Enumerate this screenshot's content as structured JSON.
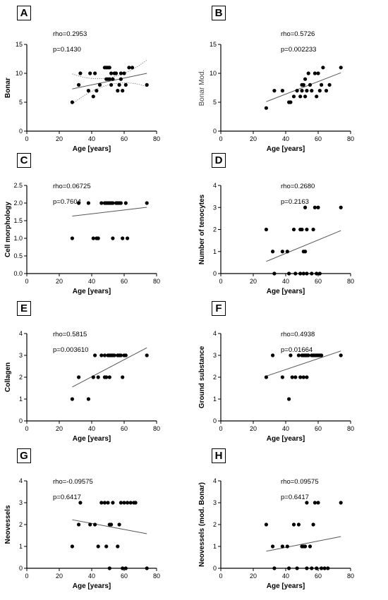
{
  "chart_data": [
    {
      "panel": "A",
      "type": "scatter",
      "xlabel": "Age [years]",
      "ylabel": "Bonar",
      "xlim": [
        0,
        80
      ],
      "ylim": [
        0,
        15
      ],
      "xticks": [
        "0",
        "20",
        "40",
        "60",
        "80"
      ],
      "yticks": [
        "0",
        "5",
        "10",
        "15"
      ],
      "annotations": [
        "rho=0.2953",
        "p=0.1430"
      ],
      "x": [
        28,
        32,
        33,
        38,
        39,
        41,
        42,
        43,
        45,
        48,
        49,
        49,
        50,
        50,
        51,
        51,
        52,
        52,
        53,
        54,
        55,
        56,
        57,
        58,
        58,
        59,
        60,
        61,
        63,
        65,
        74
      ],
      "y": [
        5,
        8,
        10,
        7,
        10,
        6,
        10,
        7,
        8,
        11,
        9,
        11,
        9,
        11,
        9,
        11,
        8,
        10,
        9,
        10,
        10,
        7,
        8,
        9,
        10,
        7,
        10,
        8,
        11,
        11,
        8
      ],
      "fit_line": {
        "x": [
          28,
          74
        ],
        "y": [
          7.3,
          10.0
        ]
      },
      "confidence_band": true,
      "ylabel_bold": true
    },
    {
      "panel": "B",
      "type": "scatter",
      "xlabel": "Age [years]",
      "ylabel": "Bonar Mod.",
      "xlim": [
        0,
        80
      ],
      "ylim": [
        0,
        15
      ],
      "xticks": [
        "0",
        "20",
        "40",
        "60",
        "80"
      ],
      "yticks": [
        "0",
        "5",
        "10",
        "15"
      ],
      "annotations": [
        "rho=0.5726",
        "p=0.002233"
      ],
      "x": [
        28,
        33,
        38,
        42,
        43,
        45,
        47,
        49,
        50,
        50,
        51,
        52,
        52,
        53,
        54,
        55,
        56,
        58,
        59,
        60,
        61,
        62,
        63,
        65,
        67,
        74
      ],
      "y": [
        4,
        7,
        7,
        5,
        5,
        6,
        7,
        6,
        8,
        7,
        8,
        6,
        9,
        7,
        10,
        8,
        7,
        10,
        6,
        10,
        7,
        8,
        11,
        7,
        8,
        11
      ],
      "fit_line": {
        "x": [
          28,
          74
        ],
        "y": [
          5.1,
          10.1
        ]
      },
      "ylabel_bold": false
    },
    {
      "panel": "C",
      "type": "scatter",
      "xlabel": "Age [years]",
      "ylabel": "Cell morphology",
      "xlim": [
        0,
        80
      ],
      "ylim": [
        0.0,
        2.5
      ],
      "xticks": [
        "0",
        "20",
        "40",
        "60",
        "80"
      ],
      "yticks": [
        "0.0",
        "0.5",
        "1.0",
        "1.5",
        "2.0",
        "2.5"
      ],
      "annotations": [
        "rho=0.06725",
        "p=0.7604"
      ],
      "x": [
        28,
        32,
        38,
        41,
        43,
        44,
        46,
        48,
        49,
        50,
        51,
        52,
        53,
        53,
        55,
        56,
        57,
        58,
        59,
        61,
        62,
        74
      ],
      "y": [
        1,
        2,
        2,
        1,
        1,
        1,
        2,
        2,
        2,
        2,
        2,
        2,
        1,
        2,
        2,
        2,
        2,
        2,
        1,
        2,
        1,
        2
      ],
      "fit_line": {
        "x": [
          28,
          74
        ],
        "y": [
          1.63,
          1.88
        ]
      },
      "ylabel_bold": true
    },
    {
      "panel": "D",
      "type": "scatter",
      "xlabel": "Age [years]",
      "ylabel": "Number of tenocytes",
      "xlim": [
        0,
        80
      ],
      "ylim": [
        0,
        4
      ],
      "xticks": [
        "0",
        "20",
        "40",
        "60",
        "80"
      ],
      "yticks": [
        "0",
        "1",
        "2",
        "3",
        "4"
      ],
      "annotations": [
        "rho=0.2680",
        "p=0.2163"
      ],
      "x": [
        28,
        32,
        33,
        38,
        41,
        42,
        45,
        46,
        49,
        49,
        50,
        51,
        51,
        52,
        52,
        53,
        53,
        56,
        57,
        58,
        59,
        60,
        61,
        74
      ],
      "y": [
        2,
        1,
        0,
        1,
        1,
        0,
        2,
        0,
        2,
        0,
        2,
        1,
        0,
        1,
        3,
        2,
        0,
        0,
        2,
        3,
        0,
        3,
        0,
        3
      ],
      "fit_line": {
        "x": [
          28,
          74
        ],
        "y": [
          0.55,
          1.95
        ]
      },
      "ylabel_bold": true
    },
    {
      "panel": "E",
      "type": "scatter",
      "xlabel": "Age [years]",
      "ylabel": "Collagen",
      "xlim": [
        0,
        80
      ],
      "ylim": [
        0,
        4
      ],
      "xticks": [
        "0",
        "20",
        "40",
        "60",
        "80"
      ],
      "yticks": [
        "0",
        "1",
        "2",
        "3",
        "4"
      ],
      "annotations": [
        "rho=0.5815",
        "p=0.003610"
      ],
      "x": [
        28,
        32,
        38,
        41,
        42,
        44,
        46,
        48,
        48,
        49,
        50,
        51,
        51,
        52,
        53,
        54,
        56,
        57,
        58,
        59,
        60,
        61,
        74
      ],
      "y": [
        1,
        2,
        1,
        2,
        3,
        2,
        3,
        2,
        3,
        2,
        3,
        2,
        3,
        3,
        3,
        3,
        3,
        3,
        3,
        2,
        3,
        3,
        3
      ],
      "fit_line": {
        "x": [
          28,
          74
        ],
        "y": [
          1.55,
          3.35
        ]
      },
      "ylabel_bold": true
    },
    {
      "panel": "F",
      "type": "scatter",
      "xlabel": "Age [years]",
      "ylabel": "Ground substance",
      "xlim": [
        0,
        80
      ],
      "ylim": [
        0,
        4
      ],
      "xticks": [
        "0",
        "20",
        "40",
        "60",
        "80"
      ],
      "yticks": [
        "0",
        "1",
        "2",
        "3",
        "4"
      ],
      "annotations": [
        "rho=0.4938",
        "p=0.01664"
      ],
      "x": [
        28,
        32,
        38,
        42,
        43,
        44,
        46,
        48,
        49,
        50,
        51,
        51,
        52,
        53,
        53,
        54,
        56,
        57,
        58,
        59,
        60,
        61,
        62,
        74
      ],
      "y": [
        2,
        3,
        2,
        1,
        3,
        2,
        2,
        3,
        2,
        3,
        3,
        2,
        3,
        3,
        2,
        3,
        3,
        3,
        3,
        3,
        3,
        3,
        3,
        3
      ],
      "fit_line": {
        "x": [
          28,
          74
        ],
        "y": [
          2.05,
          3.2
        ]
      },
      "ylabel_bold": true
    },
    {
      "panel": "G",
      "type": "scatter",
      "xlabel": "Age [years]",
      "ylabel": "Neovessels",
      "xlim": [
        0,
        80
      ],
      "ylim": [
        0,
        4
      ],
      "xticks": [
        "0",
        "20",
        "40",
        "60",
        "80"
      ],
      "yticks": [
        "0",
        "1",
        "2",
        "3",
        "4"
      ],
      "annotations": [
        "rho=-0.09575",
        "p=0.6417"
      ],
      "x": [
        28,
        32,
        33,
        39,
        42,
        44,
        46,
        48,
        49,
        50,
        51,
        51,
        52,
        53,
        56,
        57,
        58,
        59,
        60,
        61,
        62,
        64,
        66,
        67,
        74
      ],
      "y": [
        1,
        2,
        3,
        2,
        2,
        1,
        3,
        3,
        1,
        3,
        2,
        0,
        2,
        3,
        1,
        2,
        3,
        0,
        3,
        0,
        3,
        3,
        3,
        3,
        0
      ],
      "fit_line": {
        "x": [
          28,
          74
        ],
        "y": [
          2.22,
          1.58
        ]
      },
      "ylabel_bold": true
    },
    {
      "panel": "H",
      "type": "scatter",
      "xlabel": "Age [years]",
      "ylabel": "Neovessels (mod. Bonar)",
      "xlim": [
        0,
        80
      ],
      "ylim": [
        0,
        4
      ],
      "xticks": [
        "0",
        "20",
        "40",
        "60",
        "80"
      ],
      "yticks": [
        "0",
        "1",
        "2",
        "3",
        "4"
      ],
      "annotations": [
        "rho=0.09575",
        "p=0.6417"
      ],
      "x": [
        28,
        32,
        33,
        38,
        41,
        42,
        45,
        47,
        48,
        50,
        51,
        52,
        53,
        53,
        55,
        56,
        57,
        58,
        59,
        60,
        62,
        64,
        66,
        74
      ],
      "y": [
        2,
        1,
        0,
        1,
        1,
        0,
        2,
        0,
        2,
        1,
        1,
        1,
        3,
        0,
        1,
        0,
        2,
        3,
        0,
        3,
        0,
        0,
        0,
        3
      ],
      "fit_line": {
        "x": [
          28,
          74
        ],
        "y": [
          0.78,
          1.45
        ]
      },
      "ylabel_bold": true
    }
  ]
}
